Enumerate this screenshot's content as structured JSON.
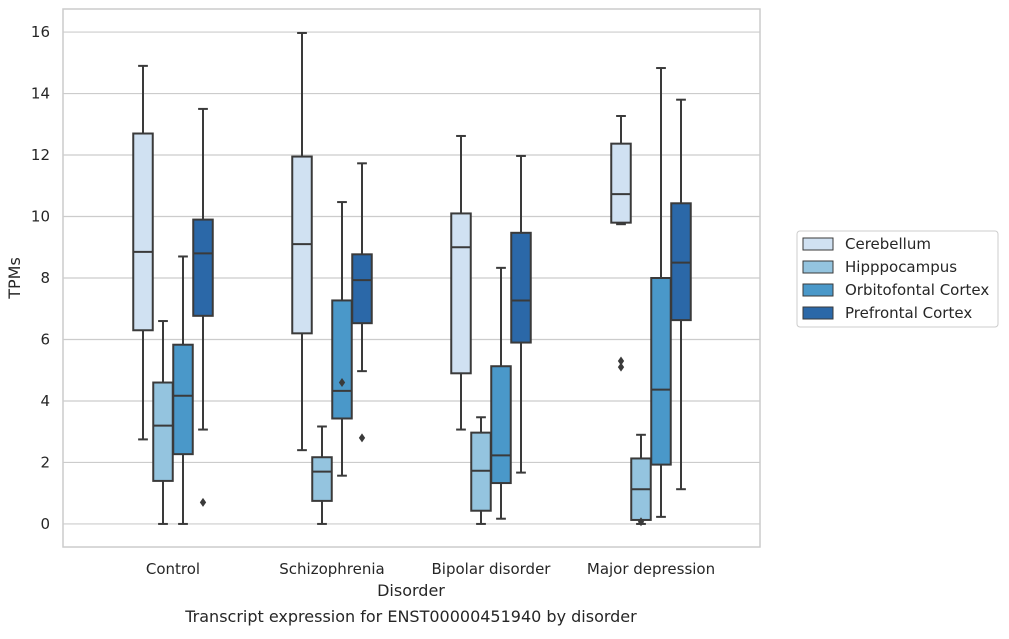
{
  "chart_data": {
    "type": "box",
    "xlabel": "Disorder",
    "ylabel": "TPMs",
    "caption": "Transcript expression for ENST00000451940 by disorder",
    "ylim": [
      -0.75,
      16.75
    ],
    "yticks": [
      0,
      2,
      4,
      6,
      8,
      10,
      12,
      14,
      16
    ],
    "grid": "horizontal",
    "legend_position": "right",
    "categories": [
      "Control",
      "Schizophrenia",
      "Bipolar disorder",
      "Major depression"
    ],
    "series": [
      {
        "name": "Cerebellum",
        "color": "#d0e1f2",
        "boxes": [
          {
            "whisker_low": 2.75,
            "q1": 6.3,
            "median": 8.85,
            "q3": 12.7,
            "whisker_high": 14.9,
            "outliers": []
          },
          {
            "whisker_low": 2.4,
            "q1": 6.2,
            "median": 9.1,
            "q3": 11.95,
            "whisker_high": 15.97,
            "outliers": []
          },
          {
            "whisker_low": 3.07,
            "q1": 4.9,
            "median": 9.0,
            "q3": 10.1,
            "whisker_high": 12.62,
            "outliers": []
          },
          {
            "whisker_low": 9.75,
            "q1": 9.8,
            "median": 10.73,
            "q3": 12.37,
            "whisker_high": 13.27,
            "outliers": [
              5.1,
              5.3
            ]
          }
        ]
      },
      {
        "name": "Hipppocampus",
        "color": "#94c4df",
        "boxes": [
          {
            "whisker_low": 0.0,
            "q1": 1.4,
            "median": 3.2,
            "q3": 4.6,
            "whisker_high": 6.6,
            "outliers": []
          },
          {
            "whisker_low": 0.0,
            "q1": 0.75,
            "median": 1.7,
            "q3": 2.17,
            "whisker_high": 3.17,
            "outliers": []
          },
          {
            "whisker_low": 0.0,
            "q1": 0.43,
            "median": 1.73,
            "q3": 2.97,
            "whisker_high": 3.47,
            "outliers": []
          },
          {
            "whisker_low": 0.0,
            "q1": 0.13,
            "median": 1.13,
            "q3": 2.13,
            "whisker_high": 2.9,
            "outliers": [
              0.07
            ]
          }
        ]
      },
      {
        "name": "Orbitofontal Cortex",
        "color": "#4a98c9",
        "boxes": [
          {
            "whisker_low": 0.0,
            "q1": 2.27,
            "median": 4.17,
            "q3": 5.83,
            "whisker_high": 8.7,
            "outliers": []
          },
          {
            "whisker_low": 1.57,
            "q1": 3.43,
            "median": 4.33,
            "q3": 7.27,
            "whisker_high": 10.47,
            "outliers": [
              4.6
            ]
          },
          {
            "whisker_low": 0.17,
            "q1": 1.33,
            "median": 2.23,
            "q3": 5.13,
            "whisker_high": 8.33,
            "outliers": []
          },
          {
            "whisker_low": 0.23,
            "q1": 1.93,
            "median": 4.37,
            "q3": 8.0,
            "whisker_high": 14.83,
            "outliers": []
          }
        ]
      },
      {
        "name": "Prefrontal Cortex",
        "color": "#2b68a8",
        "boxes": [
          {
            "whisker_low": 3.07,
            "q1": 6.77,
            "median": 8.8,
            "q3": 9.9,
            "whisker_high": 13.5,
            "outliers": [
              0.7
            ]
          },
          {
            "whisker_low": 4.97,
            "q1": 6.53,
            "median": 7.93,
            "q3": 8.77,
            "whisker_high": 11.73,
            "outliers": [
              2.8
            ]
          },
          {
            "whisker_low": 1.67,
            "q1": 5.9,
            "median": 7.27,
            "q3": 9.47,
            "whisker_high": 11.97,
            "outliers": []
          },
          {
            "whisker_low": 1.13,
            "q1": 6.63,
            "median": 8.5,
            "q3": 10.43,
            "whisker_high": 13.8,
            "outliers": []
          }
        ]
      }
    ]
  }
}
